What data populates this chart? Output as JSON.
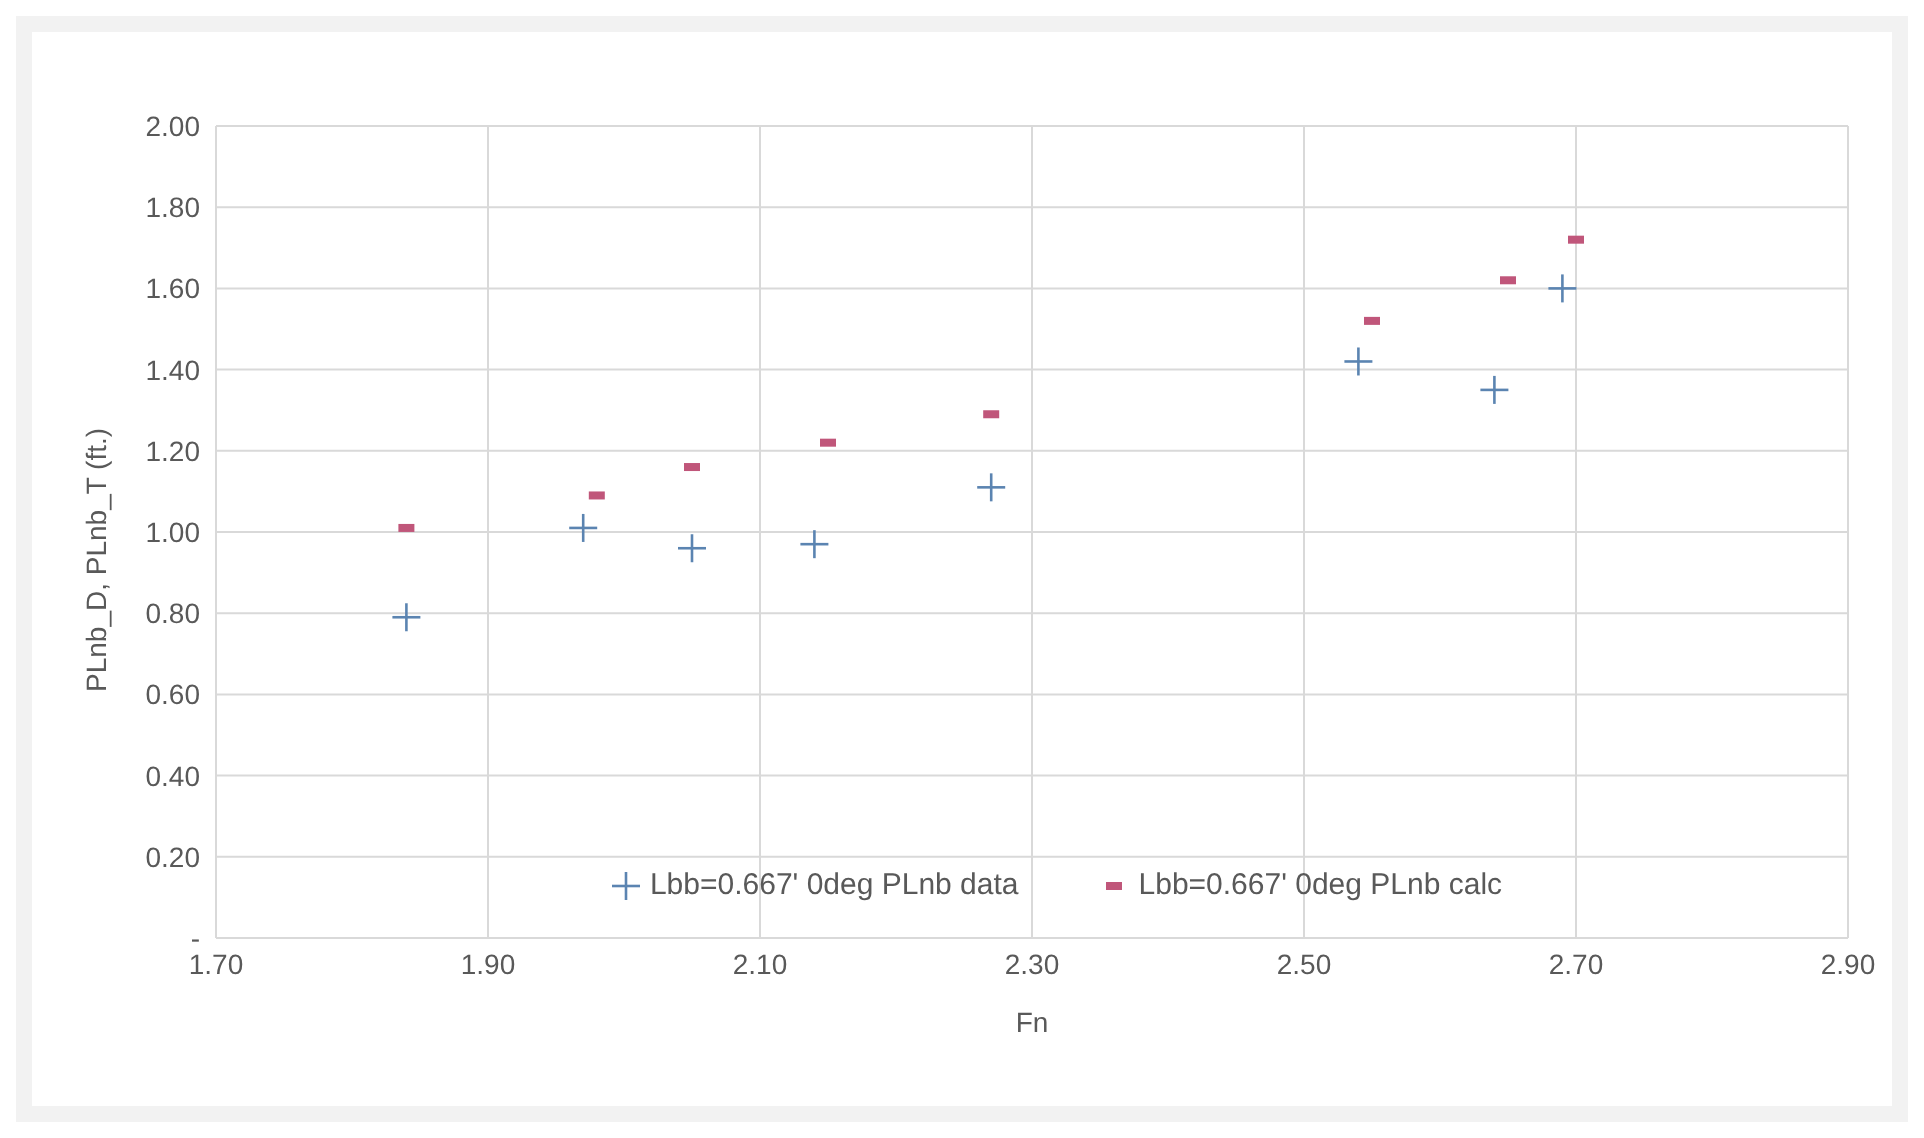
{
  "chart_data": {
    "type": "scatter",
    "xlabel": "Fn",
    "ylabel": "PLnb_D, PLnb_T (ft.)",
    "xlim": [
      1.7,
      2.9
    ],
    "xticks": [
      {
        "value": 1.7,
        "label": "1.70"
      },
      {
        "value": 1.9,
        "label": "1.90"
      },
      {
        "value": 2.1,
        "label": "2.10"
      },
      {
        "value": 2.3,
        "label": "2.30"
      },
      {
        "value": 2.5,
        "label": "2.50"
      },
      {
        "value": 2.7,
        "label": "2.70"
      },
      {
        "value": 2.9,
        "label": "2.90"
      }
    ],
    "ylim": [
      0,
      2
    ],
    "yticks": [
      {
        "value": 0,
        "label": "-"
      },
      {
        "value": 0.2,
        "label": "0.20"
      },
      {
        "value": 0.4,
        "label": "0.40"
      },
      {
        "value": 0.6,
        "label": "0.60"
      },
      {
        "value": 0.8,
        "label": "0.80"
      },
      {
        "value": 1,
        "label": "1.00"
      },
      {
        "value": 1.2,
        "label": "1.20"
      },
      {
        "value": 1.4,
        "label": "1.40"
      },
      {
        "value": 1.6,
        "label": "1.60"
      },
      {
        "value": 1.8,
        "label": "1.80"
      },
      {
        "value": 2,
        "label": "2.00"
      }
    ],
    "grid": true,
    "legend": "bottom",
    "series": [
      {
        "name": "Lbb=0.667' 0deg PLnb data",
        "color": "#5b84b1",
        "marker": "cross",
        "x": [
          1.84,
          1.97,
          2.05,
          2.14,
          2.27,
          2.54,
          2.64,
          2.69
        ],
        "values": [
          0.79,
          1.01,
          0.96,
          0.97,
          1.11,
          1.42,
          1.35,
          1.6
        ]
      },
      {
        "name": "Lbb=0.667' 0deg PLnb calc",
        "color": "#c0567a",
        "x": [
          1.84,
          1.98,
          2.05,
          2.15,
          2.27,
          2.55,
          2.65,
          2.7
        ],
        "values": [
          1.01,
          1.09,
          1.16,
          1.22,
          1.29,
          1.52,
          1.62,
          1.72
        ]
      }
    ]
  }
}
